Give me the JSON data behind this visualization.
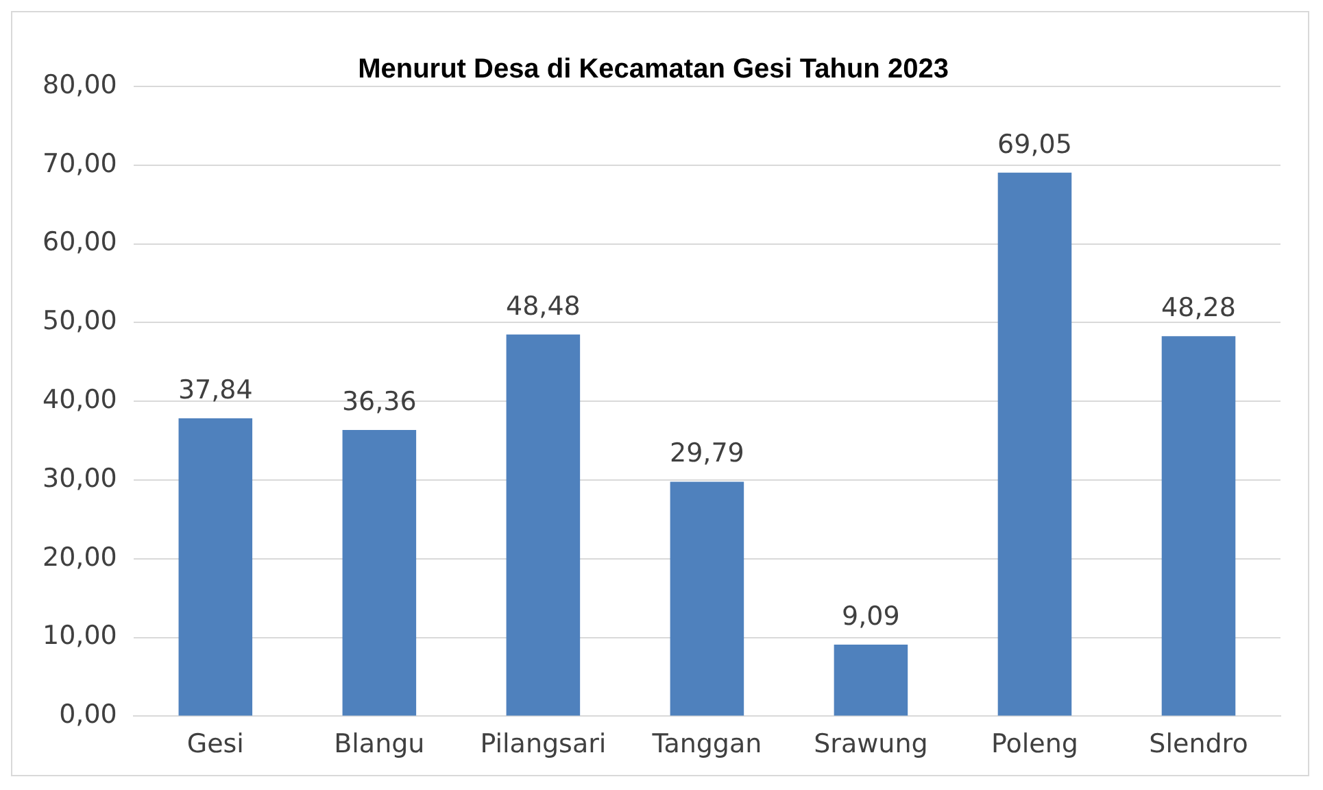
{
  "chart_data": {
    "type": "bar",
    "title": "Menurut Desa di Kecamatan Gesi Tahun 2023",
    "categories": [
      "Gesi",
      "Blangu",
      "Pilangsari",
      "Tanggan",
      "Srawung",
      "Poleng",
      "Slendro"
    ],
    "values": [
      37.84,
      36.36,
      48.48,
      29.79,
      9.09,
      69.05,
      48.28
    ],
    "color": "#4f81bd",
    "ylim": [
      0,
      80
    ],
    "yticks": [
      {
        "value": 0,
        "label": "0,00"
      },
      {
        "value": 10,
        "label": "10,00"
      },
      {
        "value": 20,
        "label": "20,00"
      },
      {
        "value": 30,
        "label": "30,00"
      },
      {
        "value": 40,
        "label": "40,00"
      },
      {
        "value": 50,
        "label": "50,00"
      },
      {
        "value": 60,
        "label": "60,00"
      },
      {
        "value": 70,
        "label": "70,00"
      },
      {
        "value": 80,
        "label": "80,00"
      }
    ],
    "value_labels": [
      "37,84",
      "36,36",
      "48,48",
      "29,79",
      "9,09",
      "69,05",
      "48,28"
    ],
    "grid": "y",
    "legend": false
  }
}
